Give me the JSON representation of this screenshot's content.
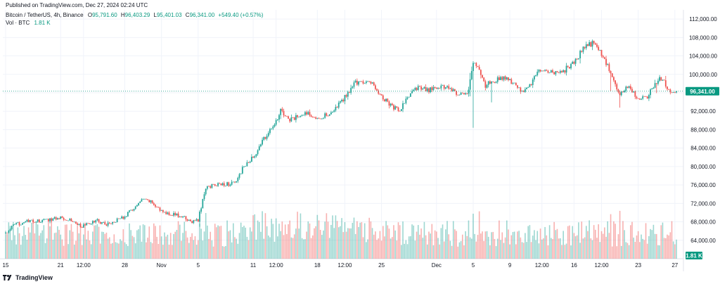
{
  "header": {
    "published": "Published on TradingView.com, Dec 27, 2024 02:24 UTC"
  },
  "legend": {
    "symbol": "Bitcoin / TetherUS, 4h, Binance",
    "o_label": "O",
    "o_value": "95,791.60",
    "h_label": "H",
    "h_value": "96,403.29",
    "l_label": "L",
    "l_value": "95,401.03",
    "c_label": "C",
    "c_value": "96,341.00",
    "change": "+549.40 (+0.57%)",
    "vol_label": "Vol · BTC",
    "vol_value": "1.81 K"
  },
  "footer": {
    "brand": "TradingView"
  },
  "colors": {
    "up": "#26a69a",
    "down": "#ef5350",
    "grid": "#f0f3fa",
    "axis_text": "#131722",
    "badge": "#089981"
  },
  "chart_data": {
    "type": "candlestick",
    "timeframe": "4h",
    "ylim": [
      60000,
      114000
    ],
    "y_ticks": [
      64000,
      68000,
      72000,
      76000,
      80000,
      84000,
      88000,
      92000,
      96000,
      100000,
      104000,
      108000,
      112000
    ],
    "y_tick_labels": [
      "64,000.00",
      "68,000.00",
      "72,000.00",
      "76,000.00",
      "80,000.00",
      "84,000.00",
      "88,000.00",
      "92,000.00",
      "96,000.00",
      "100,000.00",
      "104,000.00",
      "108,000.00",
      "112,000.00"
    ],
    "x_ticks": [
      {
        "label": "15",
        "i": 0
      },
      {
        "label": "21",
        "i": 36
      },
      {
        "label": "12:00",
        "i": 51
      },
      {
        "label": "28",
        "i": 78
      },
      {
        "label": "Nov",
        "i": 102
      },
      {
        "label": "5",
        "i": 126
      },
      {
        "label": "11",
        "i": 162
      },
      {
        "label": "12:00",
        "i": 177
      },
      {
        "label": "18",
        "i": 204
      },
      {
        "label": "12:00",
        "i": 222
      },
      {
        "label": "25",
        "i": 246
      },
      {
        "label": "Dec",
        "i": 282
      },
      {
        "label": "5",
        "i": 306
      },
      {
        "label": "9",
        "i": 330
      },
      {
        "label": "12:00",
        "i": 351
      },
      {
        "label": "16",
        "i": 372
      },
      {
        "label": "12:00",
        "i": 390
      },
      {
        "label": "23",
        "i": 414
      },
      {
        "label": "27",
        "i": 438
      }
    ],
    "last_price": 96341,
    "last_price_label": "96,341.00",
    "last_volume_label": "1.81 K",
    "path": [
      [
        0,
        65500
      ],
      [
        5,
        67200
      ],
      [
        12,
        68000
      ],
      [
        24,
        68200
      ],
      [
        36,
        69000
      ],
      [
        42,
        68500
      ],
      [
        50,
        67000
      ],
      [
        60,
        68300
      ],
      [
        66,
        67400
      ],
      [
        78,
        69200
      ],
      [
        90,
        72800
      ],
      [
        96,
        72200
      ],
      [
        102,
        70200
      ],
      [
        114,
        69300
      ],
      [
        122,
        68000
      ],
      [
        126,
        68400
      ],
      [
        131,
        75500
      ],
      [
        140,
        76200
      ],
      [
        150,
        76300
      ],
      [
        155,
        79500
      ],
      [
        162,
        82000
      ],
      [
        170,
        86500
      ],
      [
        174,
        88000
      ],
      [
        180,
        92000
      ],
      [
        186,
        90000
      ],
      [
        192,
        91000
      ],
      [
        198,
        91600
      ],
      [
        204,
        90600
      ],
      [
        210,
        91200
      ],
      [
        216,
        92500
      ],
      [
        222,
        95000
      ],
      [
        228,
        98000
      ],
      [
        234,
        98500
      ],
      [
        240,
        97800
      ],
      [
        246,
        95500
      ],
      [
        252,
        93200
      ],
      [
        258,
        92000
      ],
      [
        264,
        95500
      ],
      [
        270,
        97000
      ],
      [
        276,
        96500
      ],
      [
        282,
        97000
      ],
      [
        288,
        97500
      ],
      [
        294,
        96000
      ],
      [
        300,
        95800
      ],
      [
        303,
        96500
      ],
      [
        306,
        102800
      ],
      [
        310,
        100800
      ],
      [
        314,
        97400
      ],
      [
        318,
        98500
      ],
      [
        324,
        99200
      ],
      [
        330,
        98700
      ],
      [
        336,
        96600
      ],
      [
        342,
        96800
      ],
      [
        348,
        100600
      ],
      [
        354,
        100600
      ],
      [
        360,
        100400
      ],
      [
        366,
        101000
      ],
      [
        372,
        102500
      ],
      [
        378,
        105500
      ],
      [
        384,
        106800
      ],
      [
        390,
        104500
      ],
      [
        396,
        100200
      ],
      [
        402,
        95500
      ],
      [
        408,
        97500
      ],
      [
        414,
        94600
      ],
      [
        420,
        95000
      ],
      [
        426,
        98500
      ],
      [
        430,
        99200
      ],
      [
        434,
        96500
      ],
      [
        438,
        96341
      ]
    ],
    "volume_profile": {
      "scale_max_label": "1.81 K"
    }
  }
}
